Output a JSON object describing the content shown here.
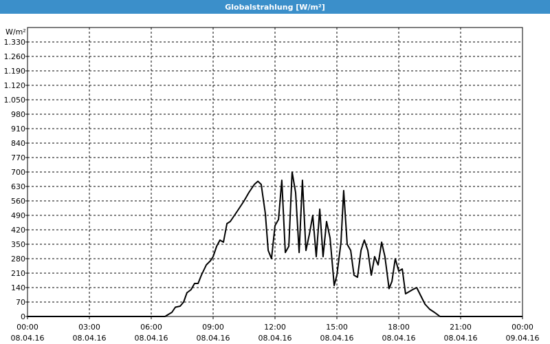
{
  "chart_data": {
    "type": "line",
    "title": "Globalstrahlung [W/m²]",
    "y_unit": "W/m²",
    "x": [
      0,
      6.67,
      6.83,
      7.0,
      7.17,
      7.4,
      7.57,
      7.73,
      7.93,
      8.1,
      8.27,
      8.43,
      8.67,
      8.87,
      9.0,
      9.17,
      9.33,
      9.5,
      9.67,
      9.83,
      10.17,
      10.5,
      10.73,
      11.0,
      11.17,
      11.33,
      11.53,
      11.67,
      11.83,
      12.0,
      12.17,
      12.33,
      12.5,
      12.67,
      12.83,
      13.0,
      13.17,
      13.33,
      13.5,
      13.67,
      13.83,
      14.0,
      14.17,
      14.33,
      14.5,
      14.67,
      14.87,
      15.0,
      15.2,
      15.33,
      15.5,
      15.67,
      15.83,
      16.0,
      16.17,
      16.33,
      16.5,
      16.67,
      16.83,
      17.0,
      17.17,
      17.33,
      17.53,
      17.67,
      17.83,
      18.0,
      18.17,
      18.33,
      18.67,
      18.87,
      19.07,
      19.27,
      19.5,
      19.73,
      20.0,
      24.0
    ],
    "series": [
      {
        "name": "Globalstrahlung",
        "color": "#000000",
        "values": [
          0,
          0,
          10,
          20,
          45,
          50,
          70,
          115,
          130,
          160,
          160,
          200,
          250,
          270,
          290,
          340,
          370,
          360,
          450,
          460,
          510,
          560,
          600,
          640,
          655,
          640,
          500,
          320,
          280,
          440,
          470,
          660,
          310,
          340,
          700,
          600,
          310,
          660,
          320,
          400,
          490,
          290,
          520,
          290,
          460,
          380,
          150,
          200,
          360,
          610,
          350,
          320,
          200,
          190,
          320,
          370,
          320,
          200,
          290,
          250,
          360,
          290,
          135,
          170,
          280,
          220,
          230,
          110,
          130,
          140,
          100,
          60,
          35,
          20,
          0,
          0
        ]
      }
    ],
    "xlim": [
      0,
      24
    ],
    "xticks": [
      {
        "value": 0,
        "label": "00:00 08.04.16"
      },
      {
        "value": 3,
        "label": "03:00 08.04.16"
      },
      {
        "value": 6,
        "label": "06:00 08.04.16"
      },
      {
        "value": 9,
        "label": "09:00 08.04.16"
      },
      {
        "value": 12,
        "label": "12:00 08.04.16"
      },
      {
        "value": 15,
        "label": "15:00 08.04.16"
      },
      {
        "value": 18,
        "label": "18:00 08.04.16"
      },
      {
        "value": 21,
        "label": "21:00 08.04.16"
      },
      {
        "value": 24,
        "label": "00:00 09.04.16"
      }
    ],
    "ylim": [
      0,
      1400
    ],
    "yticks": [
      0,
      70,
      140,
      210,
      280,
      350,
      420,
      490,
      560,
      630,
      700,
      770,
      840,
      910,
      980,
      {
        "value": 1050,
        "label": "1.050"
      },
      {
        "value": 1120,
        "label": "1.120"
      },
      {
        "value": 1190,
        "label": "1.190"
      },
      {
        "value": 1260,
        "label": "1.260"
      },
      {
        "value": 1330,
        "label": "1.330"
      }
    ],
    "grid": true
  }
}
